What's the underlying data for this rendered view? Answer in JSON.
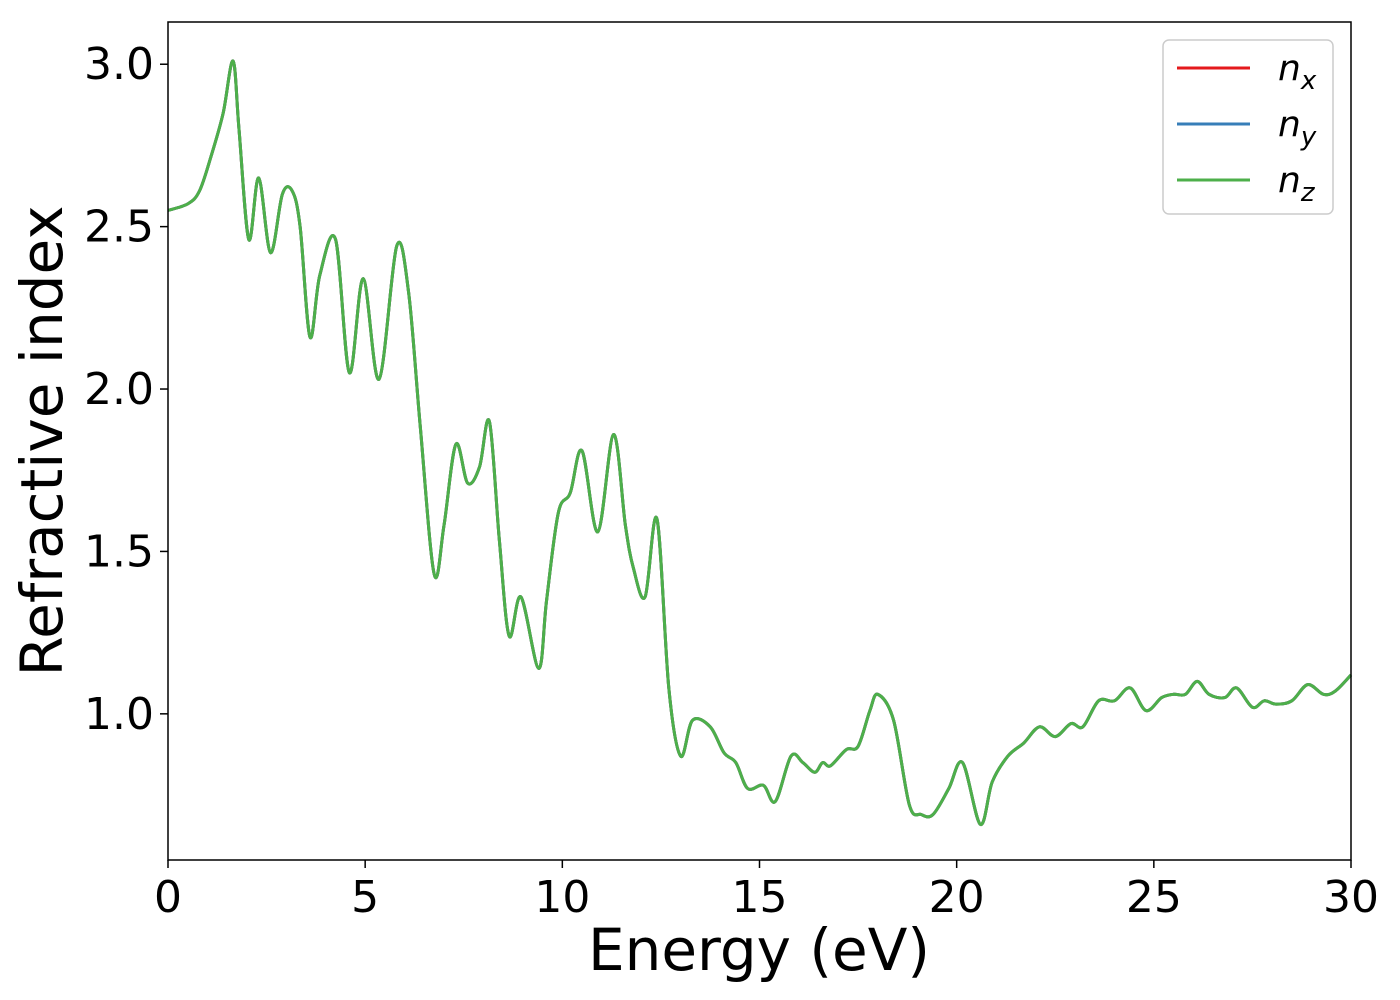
{
  "chart_data": {
    "type": "line",
    "xlabel": "Energy (eV)",
    "ylabel": "Refractive index",
    "xlim": [
      0,
      30
    ],
    "ylim": [
      0.55,
      3.13
    ],
    "xticks": [
      0,
      5,
      10,
      15,
      20,
      25,
      30
    ],
    "xtick_labels": [
      "0",
      "5",
      "10",
      "15",
      "20",
      "25",
      "30"
    ],
    "yticks": [
      1.0,
      1.5,
      2.0,
      2.5,
      3.0
    ],
    "ytick_labels": [
      "1.0",
      "1.5",
      "2.0",
      "2.5",
      "3.0"
    ],
    "grid": false,
    "legend_position": "top-right",
    "x": [
      0,
      0.5,
      0.8,
      1.1,
      1.4,
      1.65,
      1.8,
      2.05,
      2.3,
      2.6,
      2.9,
      3.15,
      3.35,
      3.6,
      3.85,
      4.25,
      4.6,
      4.95,
      5.35,
      5.8,
      6.1,
      6.4,
      6.75,
      7.0,
      7.3,
      7.6,
      7.9,
      8.15,
      8.4,
      8.65,
      8.95,
      9.4,
      9.6,
      9.9,
      10.2,
      10.5,
      10.9,
      11.3,
      11.6,
      11.8,
      12.1,
      12.4,
      12.7,
      13.0,
      13.3,
      13.75,
      14.1,
      14.4,
      14.7,
      15.1,
      15.4,
      15.8,
      16.1,
      16.4,
      16.6,
      16.8,
      17.2,
      17.5,
      17.8,
      18.0,
      18.4,
      18.8,
      19.1,
      19.4,
      19.8,
      20.15,
      20.6,
      20.9,
      21.3,
      21.7,
      22.1,
      22.5,
      22.9,
      23.2,
      23.6,
      24.0,
      24.4,
      24.8,
      25.2,
      25.5,
      25.8,
      26.1,
      26.4,
      26.8,
      27.1,
      27.5,
      27.8,
      28.1,
      28.5,
      28.9,
      29.3,
      29.6,
      30.0
    ],
    "series": [
      {
        "name": "nx",
        "color": "#e41a1c",
        "values": [
          2.55,
          2.57,
          2.61,
          2.72,
          2.85,
          3.01,
          2.8,
          2.46,
          2.65,
          2.42,
          2.6,
          2.61,
          2.5,
          2.16,
          2.35,
          2.46,
          2.05,
          2.34,
          2.03,
          2.44,
          2.3,
          1.88,
          1.43,
          1.58,
          1.83,
          1.71,
          1.76,
          1.9,
          1.54,
          1.24,
          1.36,
          1.14,
          1.35,
          1.62,
          1.68,
          1.81,
          1.56,
          1.86,
          1.58,
          1.45,
          1.36,
          1.6,
          1.08,
          0.87,
          0.98,
          0.96,
          0.88,
          0.85,
          0.77,
          0.78,
          0.73,
          0.87,
          0.85,
          0.82,
          0.85,
          0.84,
          0.89,
          0.9,
          1.01,
          1.06,
          0.98,
          0.72,
          0.69,
          0.69,
          0.77,
          0.85,
          0.66,
          0.79,
          0.87,
          0.91,
          0.96,
          0.93,
          0.97,
          0.96,
          1.04,
          1.04,
          1.08,
          1.01,
          1.05,
          1.06,
          1.06,
          1.1,
          1.06,
          1.05,
          1.08,
          1.02,
          1.04,
          1.03,
          1.04,
          1.09,
          1.06,
          1.07,
          1.12
        ]
      },
      {
        "name": "ny",
        "color": "#377eb8",
        "values": [
          2.55,
          2.57,
          2.61,
          2.72,
          2.85,
          3.01,
          2.8,
          2.46,
          2.65,
          2.42,
          2.6,
          2.61,
          2.5,
          2.16,
          2.35,
          2.46,
          2.05,
          2.34,
          2.03,
          2.44,
          2.3,
          1.88,
          1.43,
          1.58,
          1.83,
          1.71,
          1.76,
          1.9,
          1.54,
          1.24,
          1.36,
          1.14,
          1.35,
          1.62,
          1.68,
          1.81,
          1.56,
          1.86,
          1.58,
          1.45,
          1.36,
          1.6,
          1.08,
          0.87,
          0.98,
          0.96,
          0.88,
          0.85,
          0.77,
          0.78,
          0.73,
          0.87,
          0.85,
          0.82,
          0.85,
          0.84,
          0.89,
          0.9,
          1.01,
          1.06,
          0.98,
          0.72,
          0.69,
          0.69,
          0.77,
          0.85,
          0.66,
          0.79,
          0.87,
          0.91,
          0.96,
          0.93,
          0.97,
          0.96,
          1.04,
          1.04,
          1.08,
          1.01,
          1.05,
          1.06,
          1.06,
          1.1,
          1.06,
          1.05,
          1.08,
          1.02,
          1.04,
          1.03,
          1.04,
          1.09,
          1.06,
          1.07,
          1.12
        ]
      },
      {
        "name": "nz",
        "color": "#4daf4a",
        "values": [
          2.55,
          2.57,
          2.61,
          2.72,
          2.85,
          3.01,
          2.8,
          2.46,
          2.65,
          2.42,
          2.6,
          2.61,
          2.5,
          2.16,
          2.35,
          2.46,
          2.05,
          2.34,
          2.03,
          2.44,
          2.3,
          1.88,
          1.43,
          1.58,
          1.83,
          1.71,
          1.76,
          1.9,
          1.54,
          1.24,
          1.36,
          1.14,
          1.35,
          1.62,
          1.68,
          1.81,
          1.56,
          1.86,
          1.58,
          1.45,
          1.36,
          1.6,
          1.08,
          0.87,
          0.98,
          0.96,
          0.88,
          0.85,
          0.77,
          0.78,
          0.73,
          0.87,
          0.85,
          0.82,
          0.85,
          0.84,
          0.89,
          0.9,
          1.01,
          1.06,
          0.98,
          0.72,
          0.69,
          0.69,
          0.77,
          0.85,
          0.66,
          0.79,
          0.87,
          0.91,
          0.96,
          0.93,
          0.97,
          0.96,
          1.04,
          1.04,
          1.08,
          1.01,
          1.05,
          1.06,
          1.06,
          1.1,
          1.06,
          1.05,
          1.08,
          1.02,
          1.04,
          1.03,
          1.04,
          1.09,
          1.06,
          1.07,
          1.12
        ]
      }
    ],
    "legend": [
      {
        "base": "n",
        "sub": "x",
        "color": "#e41a1c"
      },
      {
        "base": "n",
        "sub": "y",
        "color": "#377eb8"
      },
      {
        "base": "n",
        "sub": "z",
        "color": "#4daf4a"
      }
    ]
  }
}
